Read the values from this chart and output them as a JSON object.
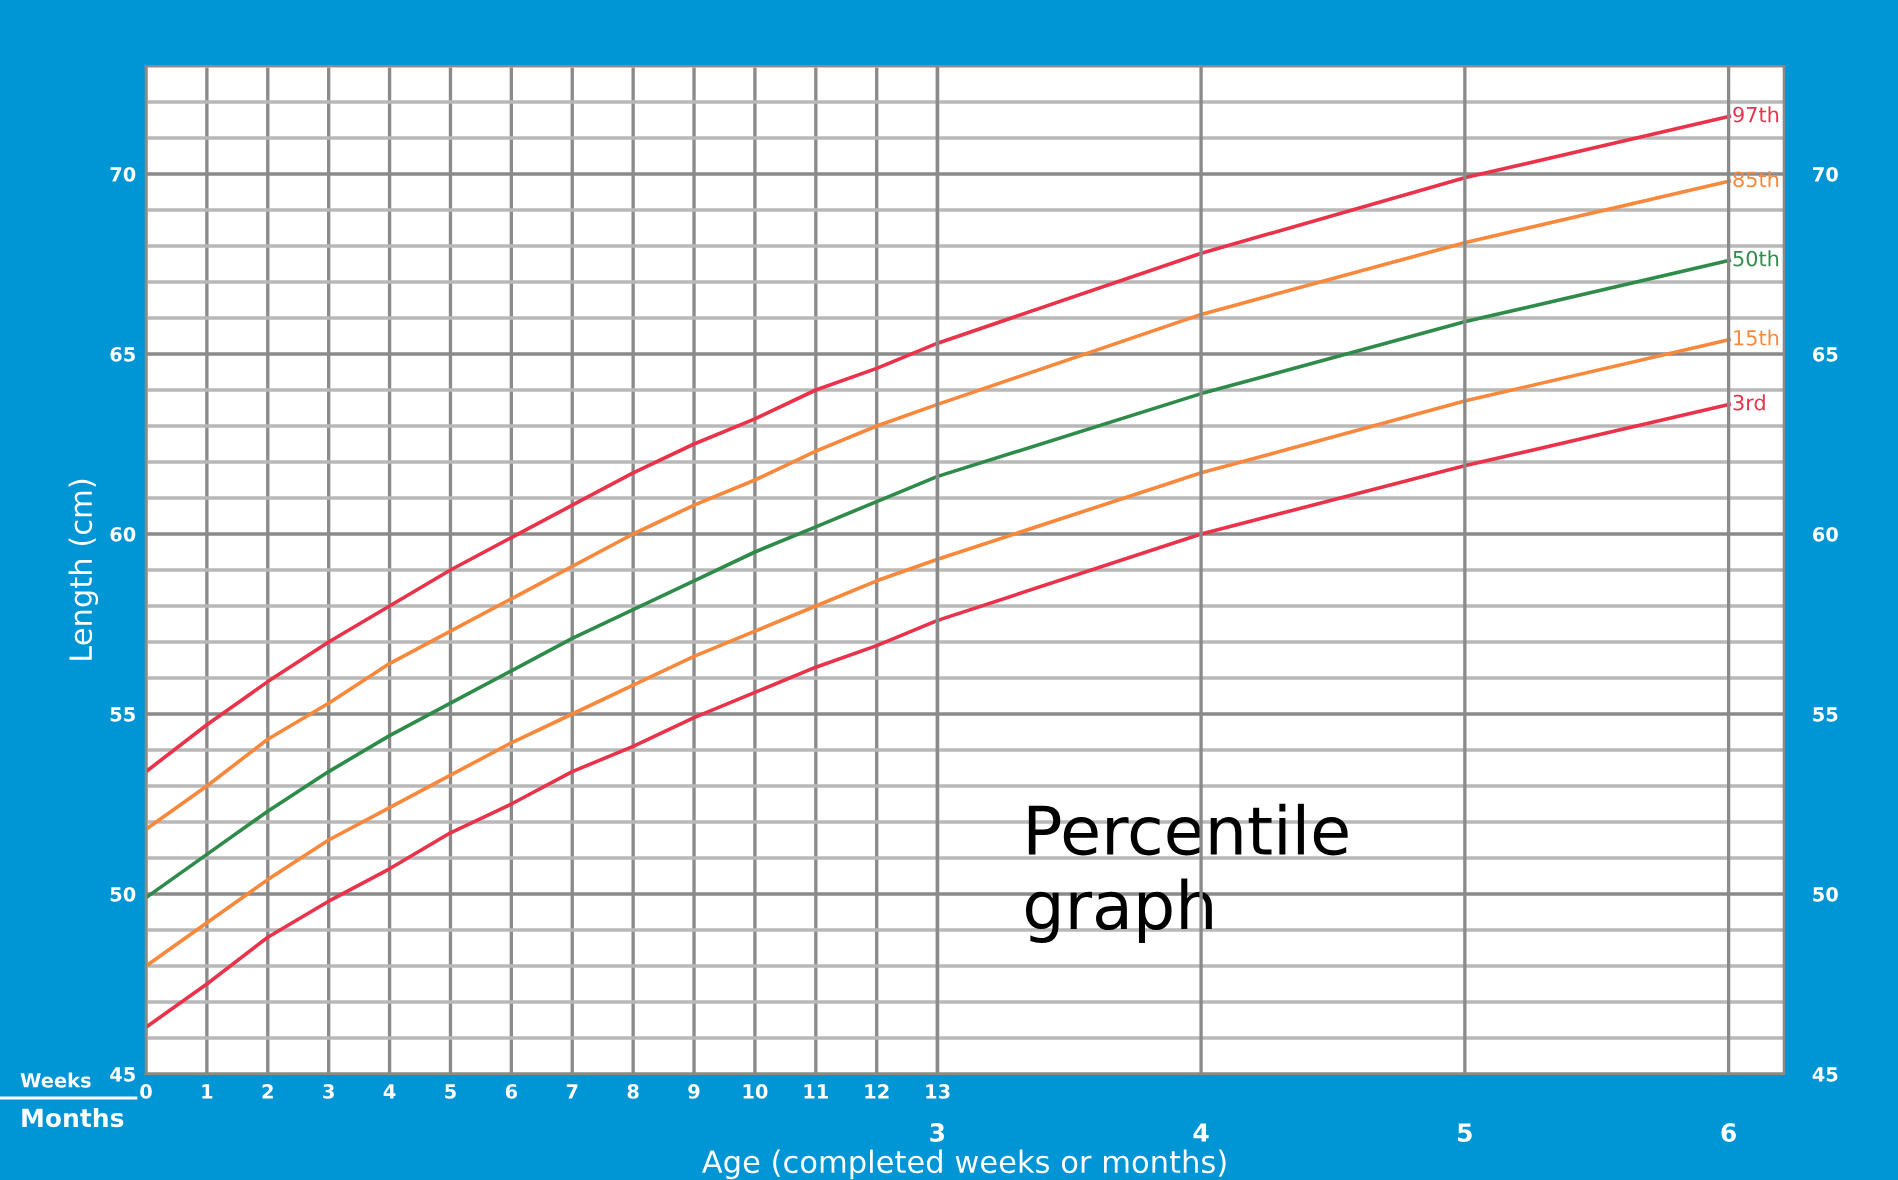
{
  "chart_data": {
    "type": "line",
    "xlabel": "Age (completed weeks or months)",
    "ylabel": "Length (cm)",
    "x": [
      0,
      1,
      2,
      3,
      4,
      5,
      6,
      7,
      8,
      9,
      10,
      11,
      12,
      13,
      17.33,
      21.67,
      26
    ],
    "series": [
      {
        "name": "97th",
        "color": "#e8334a",
        "values": [
          53.4,
          54.7,
          55.9,
          57.0,
          58.0,
          59.0,
          59.9,
          60.8,
          61.7,
          62.5,
          63.2,
          64.0,
          64.6,
          65.3,
          67.8,
          69.9,
          71.6
        ]
      },
      {
        "name": "85th",
        "color": "#f7883c",
        "values": [
          51.8,
          53.0,
          54.3,
          55.3,
          56.4,
          57.3,
          58.2,
          59.1,
          60.0,
          60.8,
          61.5,
          62.3,
          63.0,
          63.6,
          66.1,
          68.1,
          69.8
        ]
      },
      {
        "name": "50th",
        "color": "#2e8b4a",
        "values": [
          49.9,
          51.1,
          52.3,
          53.4,
          54.4,
          55.3,
          56.2,
          57.1,
          57.9,
          58.7,
          59.5,
          60.2,
          60.9,
          61.6,
          63.9,
          65.9,
          67.6
        ]
      },
      {
        "name": "15th",
        "color": "#f7883c",
        "values": [
          48.0,
          49.2,
          50.4,
          51.5,
          52.4,
          53.3,
          54.2,
          55.0,
          55.8,
          56.6,
          57.3,
          58.0,
          58.7,
          59.3,
          61.7,
          63.7,
          65.4
        ]
      },
      {
        "name": "3rd",
        "color": "#e8334a",
        "values": [
          46.3,
          47.5,
          48.8,
          49.8,
          50.7,
          51.7,
          52.5,
          53.4,
          54.1,
          54.9,
          55.6,
          56.3,
          56.9,
          57.6,
          60.0,
          61.9,
          63.6
        ]
      }
    ],
    "xlim": [
      0,
      26.9
    ],
    "xticks": [
      0,
      1,
      2,
      3,
      4,
      5,
      6,
      7,
      8,
      9,
      10,
      11,
      12,
      13
    ],
    "x2lim": [
      0,
      6.21
    ],
    "x2ticks": [
      3,
      4,
      5,
      6
    ],
    "ylim": [
      45,
      73
    ],
    "yticks": [
      45,
      {
        "value": 46,
        "label": null
      },
      {
        "value": 47,
        "label": null
      },
      {
        "value": 48,
        "label": null
      },
      {
        "value": 49,
        "label": null
      },
      50,
      {
        "value": 51,
        "label": null
      },
      {
        "value": 52,
        "label": null
      },
      {
        "value": 53,
        "label": null
      },
      {
        "value": 54,
        "label": null
      },
      55,
      {
        "value": 56,
        "label": null
      },
      {
        "value": 57,
        "label": null
      },
      {
        "value": 58,
        "label": null
      },
      {
        "value": 59,
        "label": null
      },
      60,
      {
        "value": 61,
        "label": null
      },
      {
        "value": 62,
        "label": null
      },
      {
        "value": 63,
        "label": null
      },
      {
        "value": 64,
        "label": null
      },
      65,
      {
        "value": 66,
        "label": null
      },
      {
        "value": 67,
        "label": null
      },
      {
        "value": 68,
        "label": null
      },
      {
        "value": 69,
        "label": null
      },
      70,
      {
        "value": 71,
        "label": null
      },
      {
        "value": 72,
        "label": null
      },
      {
        "value": 73,
        "label": null
      }
    ],
    "y2lim": [
      45,
      73
    ],
    "y2ticks": [
      45,
      50,
      55,
      60,
      65,
      70
    ],
    "annotations": [
      "Percentile\ngraph",
      "Weeks",
      "Months"
    ],
    "grid": true,
    "legend": false,
    "marker": "none",
    "line_style": "solid"
  }
}
